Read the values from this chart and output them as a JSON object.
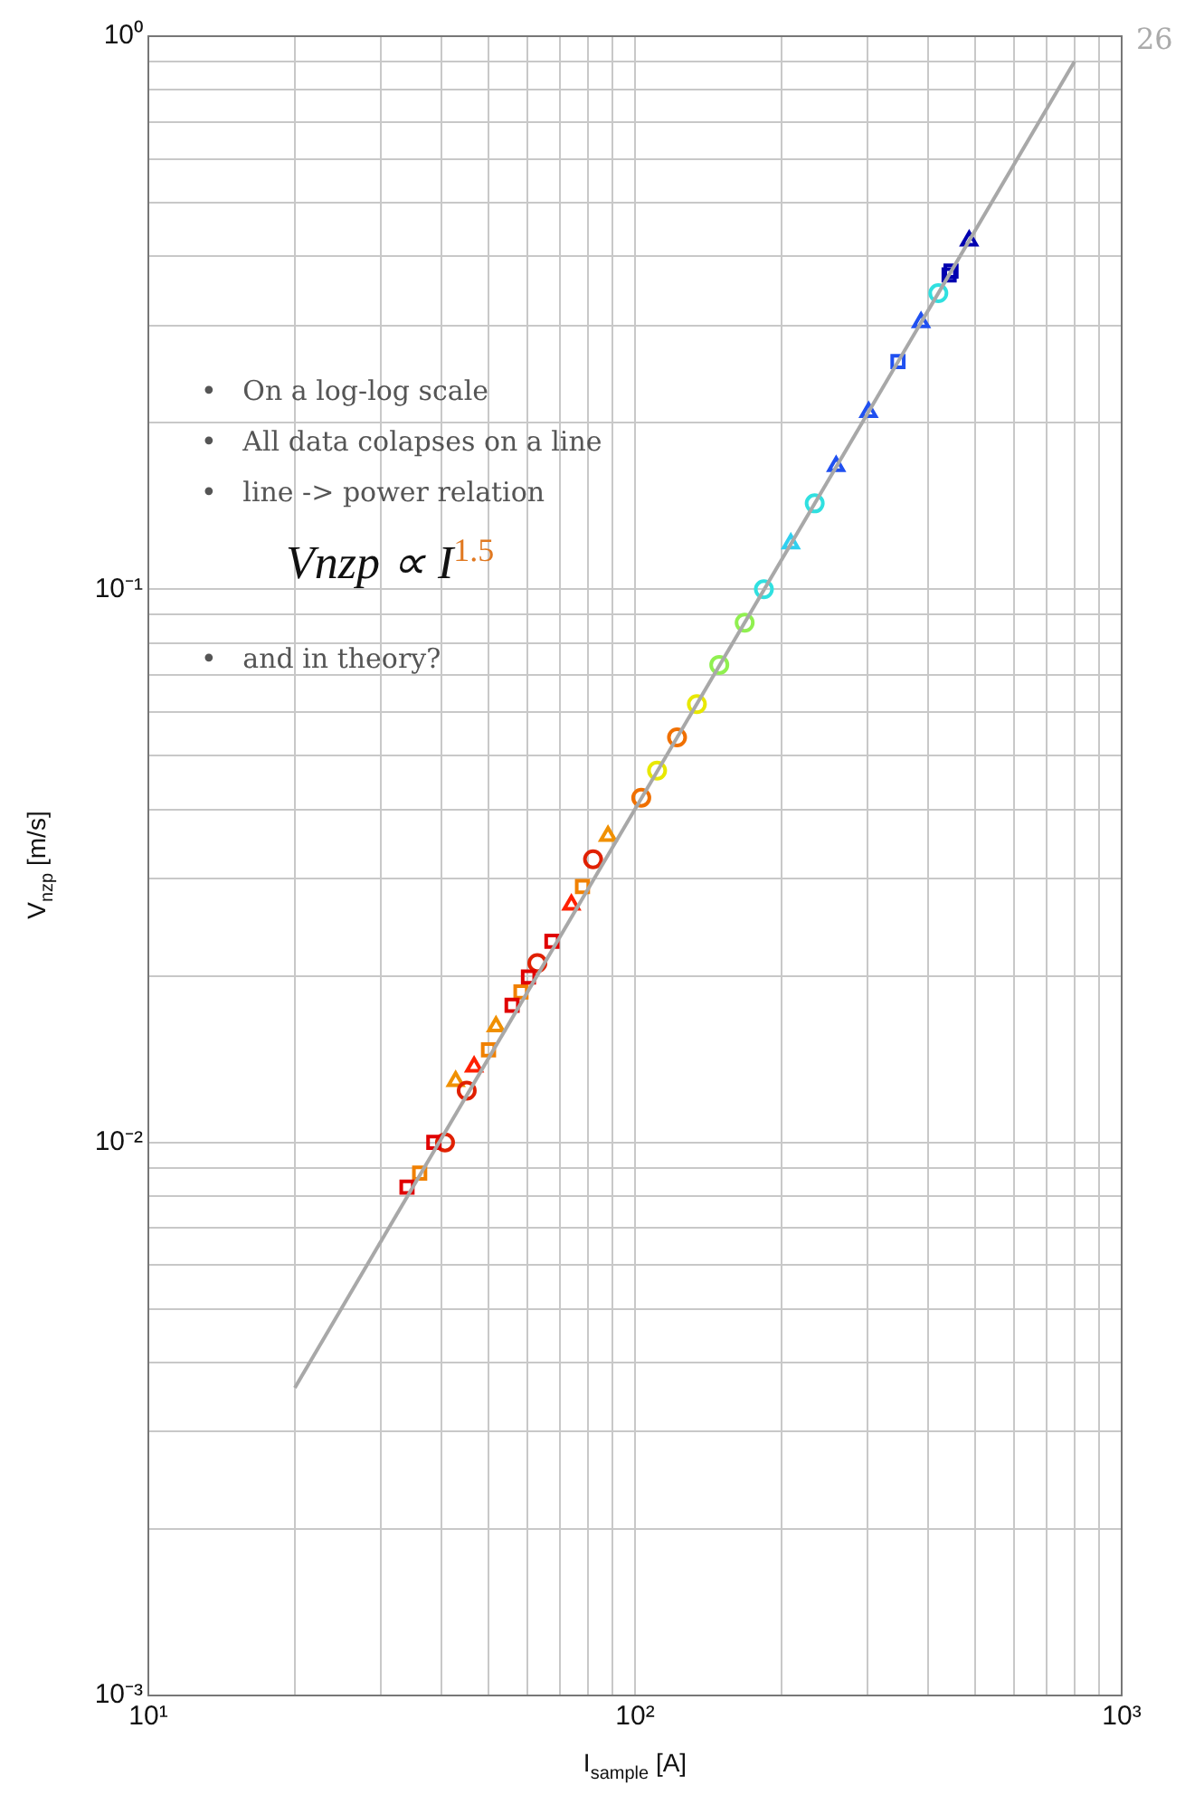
{
  "chart_data": {
    "type": "scatter",
    "xlabel": "I$_{sample}$ [A]",
    "ylabel": "V$_{nzp}$ [m/s]",
    "log": "xy",
    "grid": true,
    "legend": false,
    "xlim": [
      10,
      1000
    ],
    "ylim": [
      0.001,
      1
    ],
    "xticks": [
      {
        "value": 10,
        "label": "10¹"
      },
      {
        "value": 20,
        "label": null
      },
      {
        "value": 30,
        "label": null
      },
      {
        "value": 40,
        "label": null
      },
      {
        "value": 50,
        "label": null
      },
      {
        "value": 60,
        "label": null
      },
      {
        "value": 70,
        "label": null
      },
      {
        "value": 80,
        "label": null
      },
      {
        "value": 90,
        "label": null
      },
      {
        "value": 100,
        "label": "10²"
      },
      {
        "value": 200,
        "label": null
      },
      {
        "value": 300,
        "label": null
      },
      {
        "value": 400,
        "label": null
      },
      {
        "value": 500,
        "label": null
      },
      {
        "value": 600,
        "label": null
      },
      {
        "value": 700,
        "label": null
      },
      {
        "value": 800,
        "label": null
      },
      {
        "value": 900,
        "label": null
      },
      {
        "value": 1000,
        "label": "10³"
      }
    ],
    "yticks": [
      {
        "value": 0.001,
        "label": "10⁻³"
      },
      {
        "value": 0.002,
        "label": null
      },
      {
        "value": 0.003,
        "label": null
      },
      {
        "value": 0.004,
        "label": null
      },
      {
        "value": 0.005,
        "label": null
      },
      {
        "value": 0.006,
        "label": null
      },
      {
        "value": 0.007,
        "label": null
      },
      {
        "value": 0.008,
        "label": null
      },
      {
        "value": 0.009,
        "label": null
      },
      {
        "value": 0.01,
        "label": "10⁻²"
      },
      {
        "value": 0.02,
        "label": null
      },
      {
        "value": 0.03,
        "label": null
      },
      {
        "value": 0.04,
        "label": null
      },
      {
        "value": 0.05,
        "label": null
      },
      {
        "value": 0.06,
        "label": null
      },
      {
        "value": 0.07,
        "label": null
      },
      {
        "value": 0.08,
        "label": null
      },
      {
        "value": 0.09,
        "label": null
      },
      {
        "value": 0.1,
        "label": "10⁻¹"
      },
      {
        "value": 0.2,
        "label": null
      },
      {
        "value": 0.3,
        "label": null
      },
      {
        "value": 0.4,
        "label": null
      },
      {
        "value": 0.5,
        "label": null
      },
      {
        "value": 0.6,
        "label": null
      },
      {
        "value": 0.7,
        "label": null
      },
      {
        "value": 0.8,
        "label": null
      },
      {
        "value": 0.9,
        "label": null
      },
      {
        "value": 1,
        "label": "10⁰"
      }
    ],
    "series": [
      {
        "type": "line",
        "color": "#a8a8a8",
        "marker": "none",
        "x": [
          20,
          800
        ],
        "values": [
          0.0036,
          0.9
        ]
      },
      {
        "color": "#e00000",
        "marker": "square",
        "x": [
          34,
          38.6,
          55.9,
          60.4,
          67.5
        ],
        "values": [
          0.0083,
          0.01,
          0.0177,
          0.0199,
          0.0231
        ]
      },
      {
        "color": "#e02000",
        "marker": "circle",
        "x": [
          40.7,
          45.1,
          63,
          82
        ],
        "values": [
          0.01,
          0.0124,
          0.0211,
          0.0325
        ]
      },
      {
        "color": "#ff2000",
        "marker": "triangle",
        "x": [
          46.7,
          74
        ],
        "values": [
          0.0137,
          0.0269
        ]
      },
      {
        "color": "#f08000",
        "marker": "square",
        "x": [
          36.1,
          50,
          58.3,
          78
        ],
        "values": [
          0.0088,
          0.0147,
          0.0187,
          0.029
        ]
      },
      {
        "color": "#f09000",
        "marker": "triangle",
        "x": [
          42.8,
          51.8,
          88
        ],
        "values": [
          0.0129,
          0.0162,
          0.0358
        ]
      },
      {
        "color": "#f07000",
        "marker": "circle",
        "x": [
          103,
          122
        ],
        "values": [
          0.042,
          0.054
        ]
      },
      {
        "color": "#e8e800",
        "marker": "circle",
        "x": [
          111,
          134
        ],
        "values": [
          0.047,
          0.062
        ]
      },
      {
        "color": "#90f050",
        "marker": "circle",
        "x": [
          149,
          168
        ],
        "values": [
          0.073,
          0.087
        ]
      },
      {
        "color": "#30e0e0",
        "marker": "circle",
        "x": [
          184,
          234,
          420
        ],
        "values": [
          0.1,
          0.143,
          0.343
        ]
      },
      {
        "color": "#30d0f0",
        "marker": "triangle",
        "x": [
          209
        ],
        "values": [
          0.121
        ]
      },
      {
        "color": "#2050f0",
        "marker": "triangle",
        "x": [
          259,
          302,
          387
        ],
        "values": [
          0.167,
          0.209,
          0.304
        ]
      },
      {
        "color": "#2050f0",
        "marker": "square",
        "x": [
          347
        ],
        "values": [
          0.258
        ]
      },
      {
        "color": "#0000b0",
        "marker": "square",
        "x": [
          442,
          446
        ],
        "values": [
          0.37,
          0.376
        ]
      },
      {
        "color": "#0000b0",
        "marker": "triangle",
        "x": [
          486
        ],
        "values": [
          0.427
        ]
      }
    ],
    "annotations": [
      "26",
      "•   On a log-log scale",
      "•   All data colapses on a line",
      "•   line -> power relation",
      "Vnzp ∝ I$^{1.5}$",
      "•   and in theory?"
    ]
  }
}
